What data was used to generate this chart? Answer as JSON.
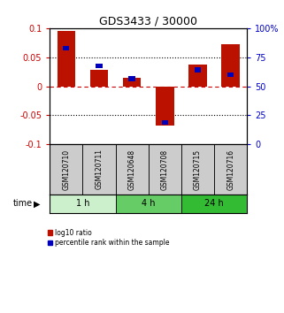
{
  "title": "GDS3433 / 30000",
  "samples": [
    "GSM120710",
    "GSM120711",
    "GSM120648",
    "GSM120708",
    "GSM120715",
    "GSM120716"
  ],
  "log10_ratio": [
    0.095,
    0.028,
    0.015,
    -0.068,
    0.038,
    0.072
  ],
  "blue_bar_top": [
    0.065,
    0.035,
    0.013,
    -0.063,
    0.028,
    0.02
  ],
  "groups": [
    {
      "label": "1 h",
      "indices": [
        0,
        1
      ],
      "color": "#ccf0cc"
    },
    {
      "label": "4 h",
      "indices": [
        2,
        3
      ],
      "color": "#66cc66"
    },
    {
      "label": "24 h",
      "indices": [
        4,
        5
      ],
      "color": "#33bb33"
    }
  ],
  "ylim_left": [
    -0.1,
    0.1
  ],
  "ylim_right": [
    0,
    100
  ],
  "yticks_left": [
    -0.1,
    -0.05,
    0,
    0.05,
    0.1
  ],
  "yticks_right": [
    0,
    25,
    50,
    75,
    100
  ],
  "ytick_labels_left": [
    "-0.1",
    "-0.05",
    "0",
    "0.05",
    "0.1"
  ],
  "ytick_labels_right": [
    "0",
    "25",
    "50",
    "75",
    "100%"
  ],
  "bar_color_red": "#bb1100",
  "bar_color_blue": "#0000bb",
  "bar_width": 0.55,
  "blue_bar_width": 0.2,
  "blue_bar_height": 0.008,
  "time_label": "time",
  "legend_red": "log10 ratio",
  "legend_blue": "percentile rank within the sample",
  "background_plot": "#ffffff",
  "background_labels": "#cccccc",
  "zero_line_color": "#cc0000",
  "right_axis_color": "#0000cc",
  "left_axis_color": "#cc0000"
}
